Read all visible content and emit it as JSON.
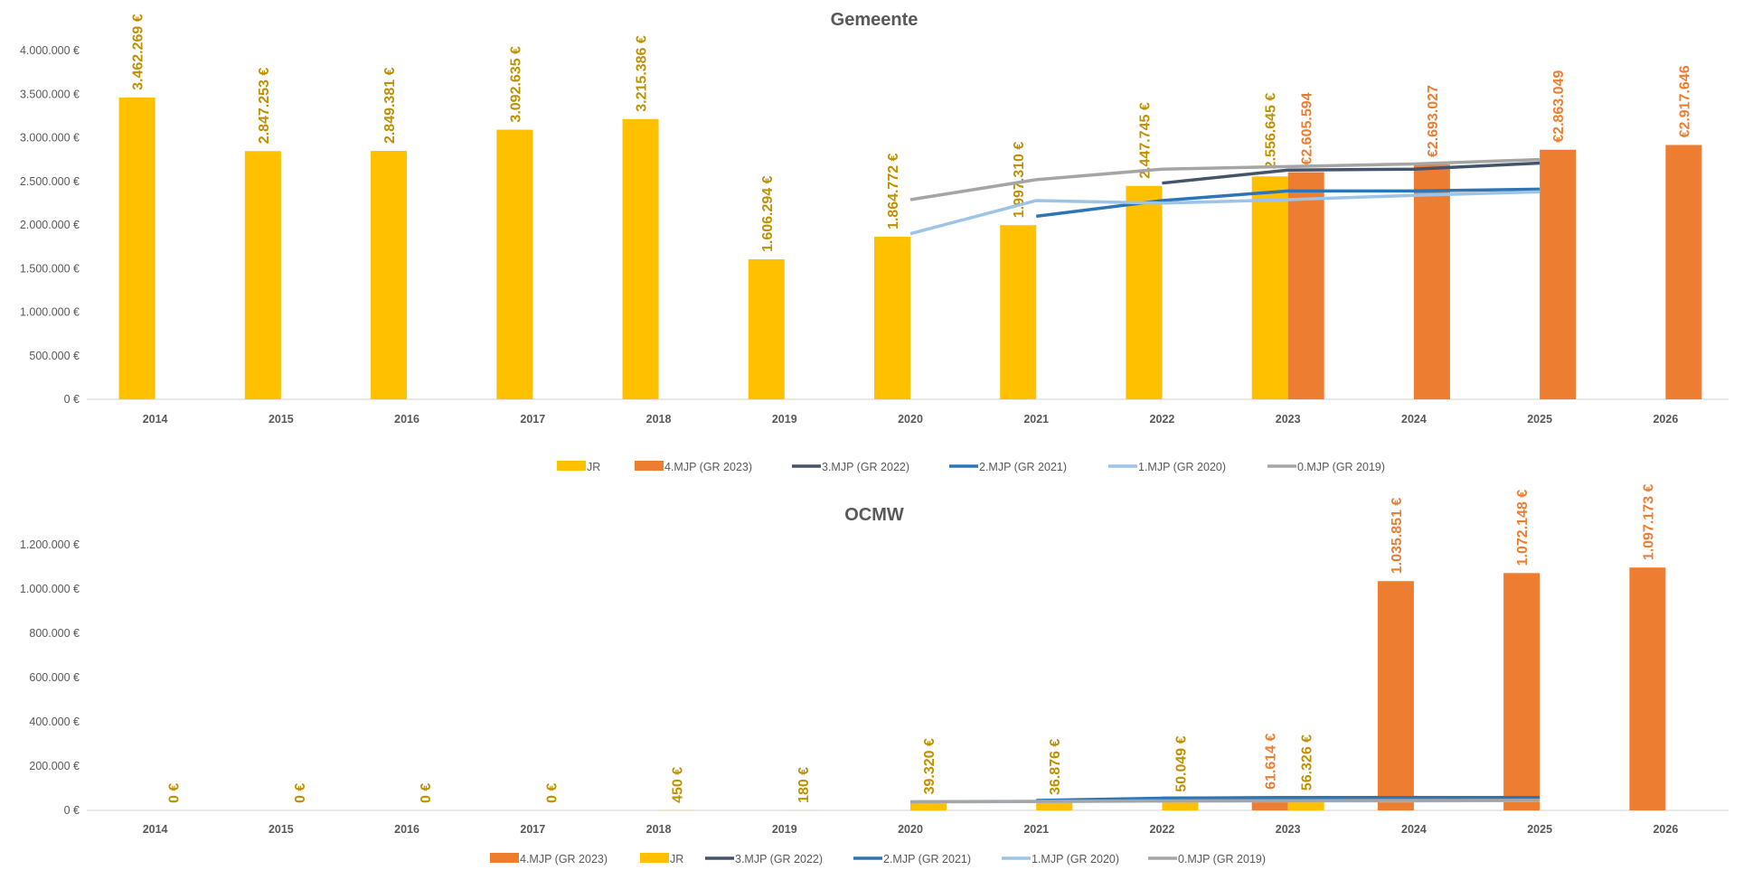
{
  "colors": {
    "jr": "#FFC000",
    "jr_label": "#BF9000",
    "mjp4": "#ED7D31",
    "mjp3": "#44546A",
    "mjp2": "#2E75B6",
    "mjp1": "#9DC3E6",
    "mjp0": "#A5A5A5",
    "axis_text": "#595959",
    "title_text": "#595959",
    "axis_line": "#D9D9D9"
  },
  "chart_data": [
    {
      "type": "bar",
      "title": "Gemeente",
      "categories": [
        "2014",
        "2015",
        "2016",
        "2017",
        "2018",
        "2019",
        "2020",
        "2021",
        "2022",
        "2023",
        "2024",
        "2025",
        "2026"
      ],
      "ylim": [
        0,
        4000000
      ],
      "yticks": [
        "0 €",
        "500.000 €",
        "1.000.000 €",
        "1.500.000 €",
        "2.000.000 €",
        "2.500.000 €",
        "3.000.000 €",
        "3.500.000 €",
        "4.000.000 €"
      ],
      "grid": false,
      "legend_position": "bottom",
      "bars": [
        {
          "name": "JR",
          "color_key": "jr",
          "label_color_key": "jr_label",
          "values": [
            3462269,
            2847253,
            2849381,
            3092635,
            3215386,
            1606294,
            1864772,
            1997310,
            2447745,
            2556645,
            null,
            null,
            null
          ],
          "labels": [
            "3.462.269 €",
            "2.847.253 €",
            "2.849.381 €",
            "3.092.635 €",
            "3.215.386 €",
            "1.606.294 €",
            "1.864.772 €",
            "1.997.310 €",
            "2.447.745 €",
            "2.556.645 €",
            "",
            "",
            ""
          ]
        },
        {
          "name": "4.MJP (GR 2023)",
          "color_key": "mjp4",
          "label_color_key": "mjp4",
          "values": [
            null,
            null,
            null,
            null,
            null,
            null,
            null,
            null,
            null,
            2605594,
            2693027,
            2863049,
            2917646
          ],
          "labels": [
            "",
            "",
            "",
            "",
            "",
            "",
            "",
            "",
            "",
            "€2.605.594",
            "€2.693.027",
            "€2.863.049",
            "€2.917.646"
          ]
        }
      ],
      "lines": [
        {
          "name": "3.MJP (GR 2022)",
          "color_key": "mjp3",
          "values": [
            null,
            null,
            null,
            null,
            null,
            null,
            null,
            null,
            2480000,
            2630000,
            2640000,
            2710000,
            null
          ]
        },
        {
          "name": "2.MJP (GR 2021)",
          "color_key": "mjp2",
          "values": [
            null,
            null,
            null,
            null,
            null,
            null,
            null,
            2100000,
            2280000,
            2390000,
            2390000,
            2410000,
            null
          ]
        },
        {
          "name": "1.MJP (GR 2020)",
          "color_key": "mjp1",
          "values": [
            null,
            null,
            null,
            null,
            null,
            null,
            1900000,
            2280000,
            2250000,
            2290000,
            2340000,
            2380000,
            null
          ]
        },
        {
          "name": "0.MJP (GR 2019)",
          "color_key": "mjp0",
          "values": [
            null,
            null,
            null,
            null,
            null,
            null,
            2290000,
            2520000,
            2640000,
            2670000,
            2700000,
            2750000,
            null
          ]
        }
      ],
      "legend": [
        {
          "name": "JR",
          "kind": "bar",
          "color_key": "jr"
        },
        {
          "name": "4.MJP (GR 2023)",
          "kind": "bar",
          "color_key": "mjp4"
        },
        {
          "name": "3.MJP (GR 2022)",
          "kind": "line",
          "color_key": "mjp3"
        },
        {
          "name": "2.MJP (GR 2021)",
          "kind": "line",
          "color_key": "mjp2"
        },
        {
          "name": "1.MJP (GR 2020)",
          "kind": "line",
          "color_key": "mjp1"
        },
        {
          "name": "0.MJP (GR 2019)",
          "kind": "line",
          "color_key": "mjp0"
        }
      ]
    },
    {
      "type": "bar",
      "title": "OCMW",
      "categories": [
        "2014",
        "2015",
        "2016",
        "2017",
        "2018",
        "2019",
        "2020",
        "2021",
        "2022",
        "2023",
        "2024",
        "2025",
        "2026"
      ],
      "ylim": [
        0,
        1200000
      ],
      "yticks": [
        "0 €",
        "200.000 €",
        "400.000 €",
        "600.000 €",
        "800.000 €",
        "1.000.000 €",
        "1.200.000 €"
      ],
      "grid": false,
      "legend_position": "bottom",
      "bars": [
        {
          "name": "4.MJP (GR 2023)",
          "color_key": "mjp4",
          "label_color_key": "mjp4",
          "values": [
            null,
            null,
            null,
            null,
            null,
            null,
            null,
            null,
            null,
            61614,
            1035851,
            1072148,
            1097173
          ],
          "labels": [
            "",
            "",
            "",
            "",
            "",
            "",
            "",
            "",
            "",
            "61.614 €",
            "1.035.851 €",
            "1.072.148 €",
            "1.097.173 €"
          ]
        },
        {
          "name": "JR",
          "color_key": "jr",
          "label_color_key": "jr_label",
          "values": [
            0,
            0,
            0,
            0,
            450,
            180,
            39320,
            36876,
            50049,
            56326,
            null,
            null,
            null
          ],
          "labels": [
            "0 €",
            "0 €",
            "0 €",
            "0 €",
            "450 €",
            "180 €",
            "39.320 €",
            "36.876 €",
            "50.049 €",
            "56.326 €",
            "",
            "",
            ""
          ]
        }
      ],
      "lines": [
        {
          "name": "3.MJP (GR 2022)",
          "color_key": "mjp3",
          "values": [
            null,
            null,
            null,
            null,
            null,
            null,
            null,
            null,
            55000,
            57000,
            57000,
            57000,
            null
          ]
        },
        {
          "name": "2.MJP (GR 2021)",
          "color_key": "mjp2",
          "values": [
            null,
            null,
            null,
            null,
            null,
            null,
            null,
            45000,
            55000,
            58000,
            58000,
            58000,
            null
          ]
        },
        {
          "name": "1.MJP (GR 2020)",
          "color_key": "mjp1",
          "values": [
            null,
            null,
            null,
            null,
            null,
            null,
            38000,
            40000,
            42000,
            43000,
            43000,
            44000,
            null
          ]
        },
        {
          "name": "0.MJP (GR 2019)",
          "color_key": "mjp0",
          "values": [
            null,
            null,
            null,
            null,
            null,
            null,
            39000,
            41000,
            43000,
            44000,
            45000,
            46000,
            null
          ]
        }
      ],
      "legend": [
        {
          "name": "4.MJP (GR 2023)",
          "kind": "bar",
          "color_key": "mjp4"
        },
        {
          "name": "JR",
          "kind": "bar",
          "color_key": "jr"
        },
        {
          "name": "3.MJP (GR 2022)",
          "kind": "line",
          "color_key": "mjp3"
        },
        {
          "name": "2.MJP (GR 2021)",
          "kind": "line",
          "color_key": "mjp2"
        },
        {
          "name": "1.MJP (GR 2020)",
          "kind": "line",
          "color_key": "mjp1"
        },
        {
          "name": "0.MJP (GR 2019)",
          "kind": "line",
          "color_key": "mjp0"
        }
      ]
    }
  ]
}
